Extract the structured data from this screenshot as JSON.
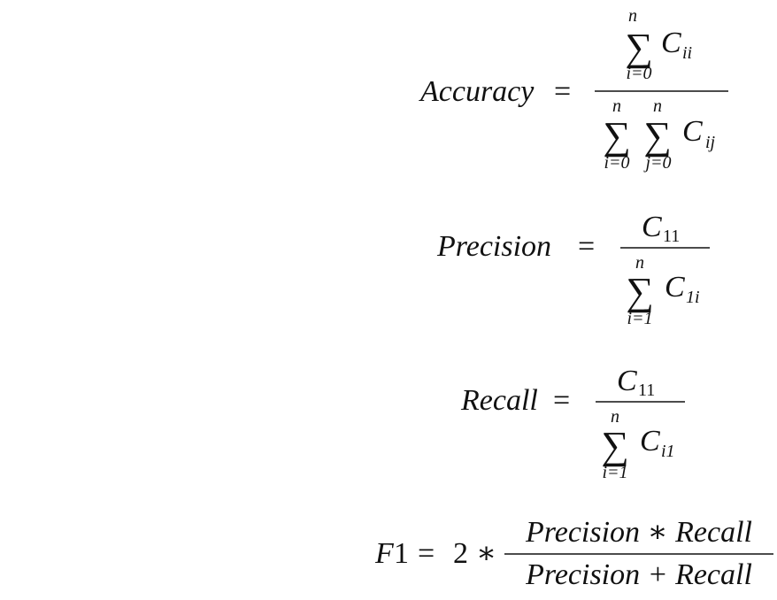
{
  "equations": {
    "accuracy": {
      "lhs": "Accuracy",
      "equals": "=",
      "numerator": {
        "sum_symbol": "∑",
        "sum_upper": "n",
        "sum_lower": "i=0",
        "term_base": "C",
        "term_sub": "ii"
      },
      "denominator": {
        "sum1_symbol": "∑",
        "sum1_upper": "n",
        "sum1_lower": "i=0",
        "sum2_symbol": "∑",
        "sum2_upper": "n",
        "sum2_lower": "j=0",
        "term_base": "C",
        "term_sub": "ij"
      }
    },
    "precision": {
      "lhs": "Precision",
      "equals": "=",
      "numerator": {
        "term_base": "C",
        "term_sub": "11"
      },
      "denominator": {
        "sum_symbol": "∑",
        "sum_upper": "n",
        "sum_lower": "i=1",
        "term_base": "C",
        "term_sub": "1i"
      }
    },
    "recall": {
      "lhs": "Recall",
      "equals": "=",
      "numerator": {
        "term_base": "C",
        "term_sub": "11"
      },
      "denominator": {
        "sum_symbol": "∑",
        "sum_upper": "n",
        "sum_lower": "i=1",
        "term_base": "C",
        "term_sub": "i1"
      }
    },
    "f1": {
      "lhs_base": "F",
      "lhs_num": "1",
      "equals": "=",
      "coef": "2",
      "times": "∗",
      "numerator": "Precision ∗ Recall",
      "denominator": "Precision + Recall"
    }
  }
}
